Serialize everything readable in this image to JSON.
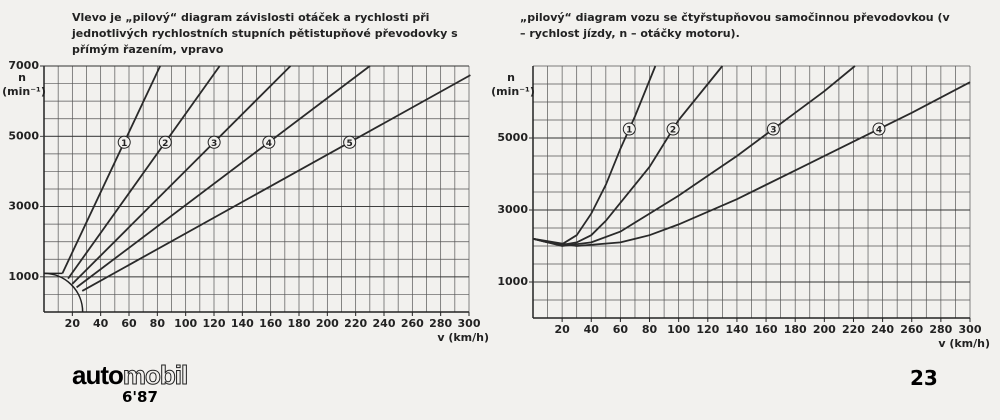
{
  "caption_left": "Vlevo je „pilový“ diagram závislosti otáček a rychlosti při jednotlivých rychlostních stupních pětistupňové převodovky s přímým řazením, vpravo",
  "caption_right": "„pilový“ diagram vozu se čtyřstupňovou samočinnou převodovkou (v – rychlost jízdy, n – otáčky motoru).",
  "footer": {
    "logo_bold": "auto",
    "logo_outline": "mobil",
    "issue": "6'87",
    "page_number": "23"
  },
  "chart_data": [
    {
      "type": "line",
      "ylabel": "n",
      "ylabel_unit": "(min⁻¹)",
      "xlabel": "v (km/h)",
      "xlim": [
        0,
        300
      ],
      "xticks": [
        20,
        40,
        60,
        80,
        100,
        120,
        140,
        160,
        180,
        200,
        220,
        240,
        260,
        280,
        300
      ],
      "ylim": [
        0,
        7000
      ],
      "yticks": [
        1000,
        3000,
        5000,
        7000
      ],
      "grid": true,
      "series": [
        {
          "name": "1",
          "color": "#2a2a2a",
          "x": [
            13,
            82
          ],
          "values": [
            1100,
            7000
          ]
        },
        {
          "name": "2",
          "color": "#2a2a2a",
          "x": [
            17,
            124
          ],
          "values": [
            950,
            7000
          ]
        },
        {
          "name": "3",
          "color": "#2a2a2a",
          "x": [
            20,
            174
          ],
          "values": [
            800,
            7000
          ]
        },
        {
          "name": "4",
          "color": "#2a2a2a",
          "x": [
            23,
            230
          ],
          "values": [
            700,
            7000
          ]
        },
        {
          "name": "5",
          "color": "#2a2a2a",
          "x": [
            27,
            301
          ],
          "values": [
            600,
            6740
          ]
        }
      ]
    },
    {
      "type": "line",
      "ylabel": "n",
      "ylabel_unit": "(min⁻¹)",
      "xlabel": "v (km/h)",
      "xlim": [
        0,
        300
      ],
      "xticks": [
        20,
        40,
        60,
        80,
        100,
        120,
        140,
        160,
        180,
        200,
        220,
        240,
        260,
        280,
        300
      ],
      "ylim": [
        0,
        7000
      ],
      "yticks": [
        1000,
        3000,
        5000
      ],
      "grid": true,
      "series": [
        {
          "name": "1",
          "color": "#2a2a2a",
          "x": [
            0,
            10,
            20,
            30,
            40,
            50,
            60,
            70,
            84
          ],
          "values": [
            2200,
            2100,
            2050,
            2300,
            2900,
            3700,
            4700,
            5600,
            7000
          ]
        },
        {
          "name": "2",
          "color": "#2a2a2a",
          "x": [
            0,
            20,
            30,
            40,
            50,
            60,
            80,
            100,
            130
          ],
          "values": [
            2200,
            2030,
            2100,
            2300,
            2700,
            3200,
            4200,
            5500,
            7000
          ]
        },
        {
          "name": "3",
          "color": "#2a2a2a",
          "x": [
            0,
            20,
            40,
            60,
            80,
            100,
            120,
            140,
            160,
            180,
            200,
            221
          ],
          "values": [
            2200,
            2000,
            2100,
            2400,
            2900,
            3400,
            3950,
            4500,
            5100,
            5700,
            6300,
            7000
          ]
        },
        {
          "name": "4",
          "color": "#2a2a2a",
          "x": [
            0,
            30,
            60,
            80,
            100,
            140,
            180,
            220,
            260,
            300
          ],
          "values": [
            2200,
            2000,
            2100,
            2300,
            2600,
            3300,
            4100,
            4900,
            5700,
            6550
          ]
        }
      ]
    }
  ]
}
